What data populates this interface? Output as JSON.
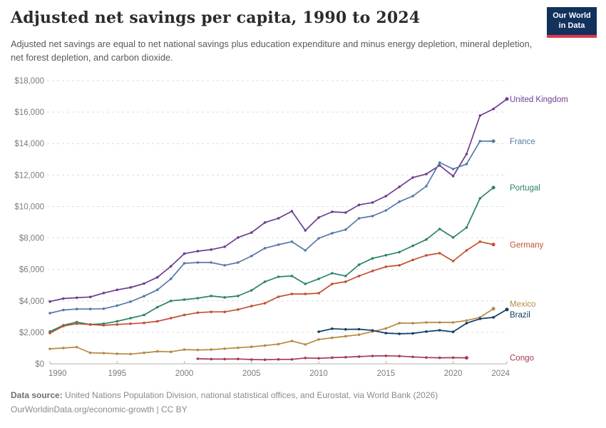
{
  "header": {
    "title": "Adjusted net savings per capita, 1990 to 2024",
    "subtitle": "Adjusted net savings are equal to net national savings plus education expenditure and minus energy depletion, mineral depletion, net forest depletion, and carbon dioxide."
  },
  "logo": {
    "line1": "Our World",
    "line2": "in Data",
    "bg_color": "#12315C",
    "accent_color": "#DC3A50"
  },
  "footer": {
    "datasource_label": "Data source:",
    "datasource_text": " United Nations Population Division, national statistical offices, and Eurostat, via World Bank (2026)",
    "permalink": "OurWorldinData.org/economic-growth",
    "license": " | CC BY"
  },
  "chart_data": {
    "type": "line",
    "title": "Adjusted net savings per capita, 1990 to 2024",
    "xlabel": "",
    "ylabel": "",
    "x_range": [
      1990,
      2024
    ],
    "y_range": [
      0,
      18000
    ],
    "grid": true,
    "legend_position": "right-end-labels",
    "x_ticks": [
      1990,
      1995,
      2000,
      2005,
      2010,
      2015,
      2020,
      2024
    ],
    "y_ticks": [
      0,
      2000,
      4000,
      6000,
      8000,
      10000,
      12000,
      14000,
      16000,
      18000
    ],
    "y_tick_labels": [
      "$0",
      "$2,000",
      "$4,000",
      "$6,000",
      "$8,000",
      "$10,000",
      "$12,000",
      "$14,000",
      "$16,000",
      "$18,000"
    ],
    "series": [
      {
        "name": "United Kingdom",
        "color": "#6D3E91",
        "start_year": 1990,
        "values": [
          3960,
          4150,
          4200,
          4250,
          4500,
          4700,
          4850,
          5100,
          5500,
          6200,
          7000,
          7160,
          7260,
          7440,
          8030,
          8340,
          8980,
          9250,
          9700,
          8480,
          9300,
          9660,
          9610,
          10100,
          10250,
          10660,
          11250,
          11840,
          12060,
          12610,
          11930,
          13330,
          15780,
          16200,
          16830
        ]
      },
      {
        "name": "France",
        "color": "#5779A7",
        "start_year": 1990,
        "values": [
          3220,
          3420,
          3480,
          3480,
          3500,
          3700,
          3950,
          4300,
          4700,
          5400,
          6390,
          6440,
          6440,
          6260,
          6440,
          6850,
          7350,
          7570,
          7760,
          7210,
          7980,
          8300,
          8530,
          9250,
          9390,
          9750,
          10300,
          10660,
          11290,
          12790,
          12380,
          12700,
          14150,
          14150
        ]
      },
      {
        "name": "Portugal",
        "color": "#2C8465",
        "start_year": 1990,
        "values": [
          2050,
          2450,
          2650,
          2500,
          2550,
          2700,
          2900,
          3100,
          3600,
          4000,
          4080,
          4170,
          4310,
          4220,
          4310,
          4670,
          5220,
          5530,
          5580,
          5080,
          5400,
          5760,
          5580,
          6300,
          6700,
          6900,
          7100,
          7500,
          7900,
          8570,
          8030,
          8660,
          10520,
          11200
        ]
      },
      {
        "name": "Germany",
        "color": "#C0512F",
        "start_year": 1990,
        "values": [
          1950,
          2400,
          2550,
          2500,
          2450,
          2500,
          2550,
          2600,
          2700,
          2900,
          3100,
          3250,
          3300,
          3300,
          3450,
          3670,
          3850,
          4260,
          4440,
          4440,
          4490,
          5080,
          5220,
          5580,
          5900,
          6170,
          6260,
          6600,
          6890,
          7030,
          6530,
          7210,
          7760,
          7580
        ]
      },
      {
        "name": "Mexico",
        "color": "#B78A44",
        "start_year": 1990,
        "values": [
          950,
          1000,
          1060,
          700,
          680,
          640,
          620,
          700,
          790,
          760,
          900,
          880,
          900,
          960,
          1020,
          1080,
          1160,
          1250,
          1450,
          1230,
          1550,
          1650,
          1750,
          1850,
          2050,
          2250,
          2590,
          2580,
          2630,
          2630,
          2630,
          2750,
          2950,
          3500
        ]
      },
      {
        "name": "Brazil",
        "color": "#0F3E66",
        "start_year": 2010,
        "values": [
          2040,
          2230,
          2190,
          2200,
          2120,
          1950,
          1910,
          1930,
          2050,
          2130,
          2030,
          2580,
          2860,
          2950,
          3450
        ]
      },
      {
        "name": "Congo",
        "color": "#A43A4F",
        "start_year": 2001,
        "values": [
          320,
          300,
          300,
          310,
          270,
          260,
          280,
          280,
          370,
          350,
          390,
          420,
          460,
          500,
          510,
          490,
          440,
          400,
          380,
          390,
          380
        ]
      }
    ]
  }
}
